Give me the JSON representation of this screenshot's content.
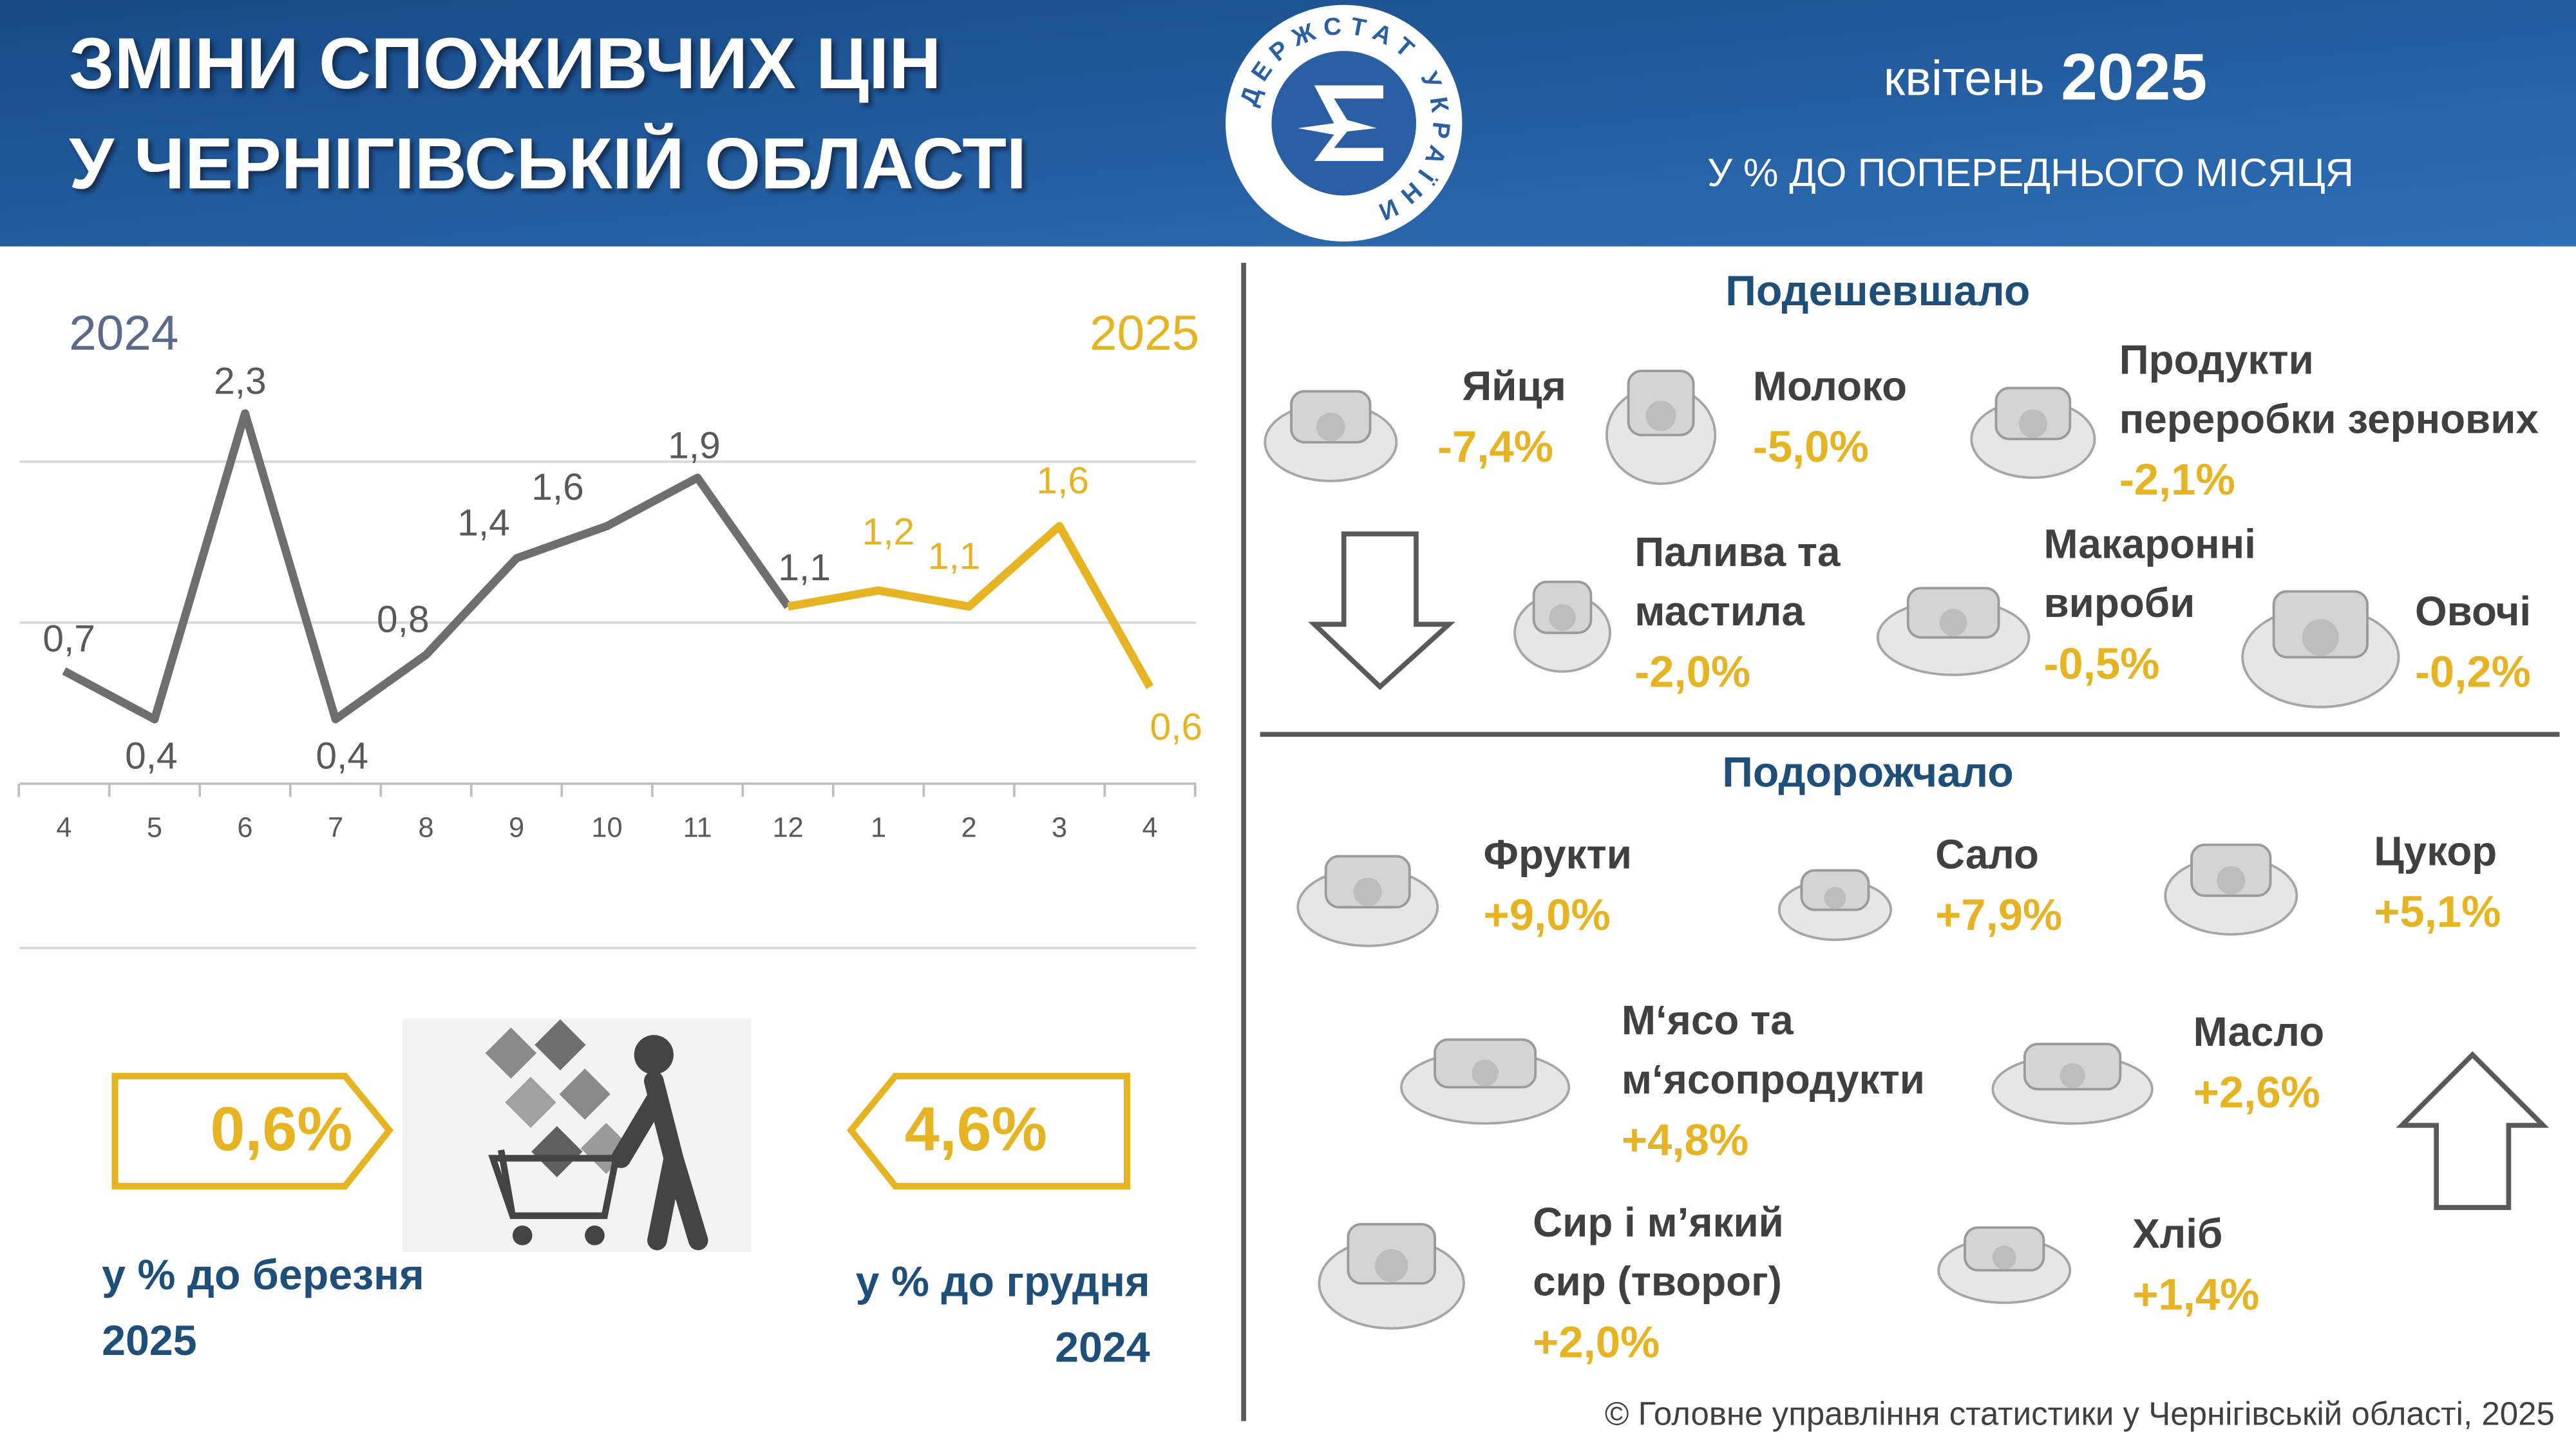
{
  "header": {
    "title": [
      "ЗМІНИ СПОЖИВЧИХ ЦІН",
      "У ЧЕРНІГІВСЬКІЙ ОБЛАСТІ"
    ],
    "month": "квітень",
    "year": "2025",
    "subtitle": "У % ДО  ПОПЕРЕДНЬОГО МІСЯЦЯ",
    "logo": "ДЕРЖСТАТ УКРАЇНИ"
  },
  "chart_data": {
    "type": "line",
    "categories": [
      "4",
      "5",
      "6",
      "7",
      "8",
      "9",
      "10",
      "11",
      "12",
      "1",
      "2",
      "3",
      "4"
    ],
    "series": [
      {
        "name": "2024",
        "color": "#6e6e6e",
        "values": [
          0.7,
          0.4,
          2.3,
          0.4,
          0.8,
          1.4,
          1.6,
          1.9,
          1.1,
          null,
          null,
          null,
          null
        ],
        "value_labels": [
          "0,7",
          "0,4",
          "2,3",
          "0,4",
          "0,8",
          "1,4",
          "1,6",
          "1,9",
          "1,1",
          null,
          null,
          null,
          null
        ]
      },
      {
        "name": "2025",
        "color": "#e6b422",
        "values": [
          null,
          null,
          null,
          null,
          null,
          null,
          null,
          null,
          1.1,
          1.2,
          1.1,
          1.6,
          0.6
        ],
        "value_labels": [
          null,
          null,
          null,
          null,
          null,
          null,
          null,
          null,
          null,
          "1,2",
          "1,1",
          "1,6",
          "0,6"
        ]
      }
    ],
    "ylim": [
      0,
      2.5
    ],
    "yticks": [
      0,
      1,
      2
    ],
    "grid": true
  },
  "summary": [
    {
      "value": "0,6%",
      "caption": [
        "у % до березня",
        "2025"
      ]
    },
    {
      "value": "4,6%",
      "caption": [
        "у % до грудня",
        "2024"
      ]
    }
  ],
  "cheaper": {
    "heading": "Подешевшало",
    "items": [
      {
        "name": [
          "Яйця"
        ],
        "change": "-7,4%"
      },
      {
        "name": [
          "Молоко"
        ],
        "change": "-5,0%"
      },
      {
        "name": [
          "Продукти",
          "переробки зернових"
        ],
        "change": "-2,1%"
      },
      {
        "name": [
          "Палива та",
          "мастила"
        ],
        "change": "-2,0%"
      },
      {
        "name": [
          "Макаронні",
          "вироби"
        ],
        "change": "-0,5%"
      },
      {
        "name": [
          "Овочі"
        ],
        "change": "-0,2%"
      }
    ]
  },
  "dearer": {
    "heading": "Подорожчало",
    "items": [
      {
        "name": [
          "Фрукти"
        ],
        "change": "+9,0%"
      },
      {
        "name": [
          "Сало"
        ],
        "change": "+7,9%"
      },
      {
        "name": [
          "Цукор"
        ],
        "change": "+5,1%"
      },
      {
        "name": [
          "М‘ясо та",
          "м‘ясопродукти"
        ],
        "change": "+4,8%"
      },
      {
        "name": [
          "Масло"
        ],
        "change": "+2,6%"
      },
      {
        "name": [
          "Сир і м’який",
          "сир (творог)"
        ],
        "change": "+2,0%"
      },
      {
        "name": [
          "Хліб"
        ],
        "change": "+1,4%"
      }
    ]
  },
  "footer": "© Головне управління статистики у Чернігівській області, 2025"
}
